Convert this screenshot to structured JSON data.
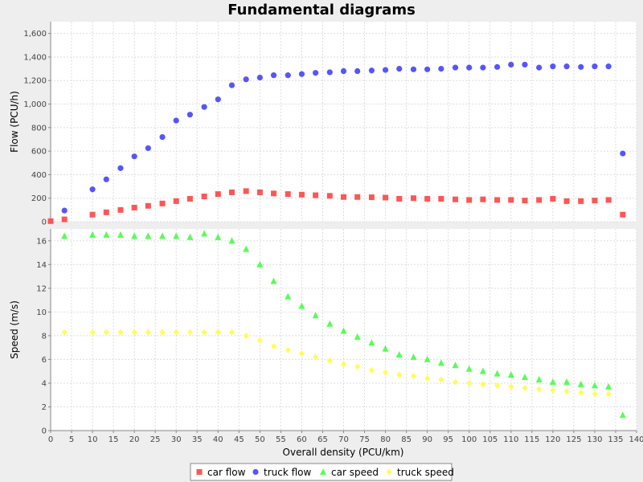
{
  "chart_data": {
    "type": "scatter",
    "title": "Fundamental diagrams",
    "xlabel": "Overall density (PCU/km)",
    "xlim": [
      0,
      140
    ],
    "xticks": [
      0,
      5,
      10,
      15,
      20,
      25,
      30,
      35,
      40,
      45,
      50,
      55,
      60,
      65,
      70,
      75,
      80,
      85,
      90,
      95,
      100,
      105,
      110,
      115,
      120,
      125,
      130,
      135,
      140
    ],
    "grid": true,
    "legend_placement": "bottom",
    "panels": [
      {
        "ylabel": "Flow (PCU/h)",
        "ylim": [
          0,
          1700
        ],
        "yticks": [
          0,
          200,
          400,
          600,
          800,
          1000,
          1200,
          1400,
          1600
        ],
        "ytick_labels": [
          "0",
          "200",
          "400",
          "600",
          "800",
          "1,000",
          "1,200",
          "1,400",
          "1,600"
        ],
        "series": [
          {
            "name": "car flow",
            "marker": "square",
            "color": "#ff5555",
            "x": [
              0,
              3.3,
              10,
              13.3,
              16.7,
              20,
              23.3,
              26.7,
              30,
              33.3,
              36.7,
              40,
              43.3,
              46.7,
              50,
              53.3,
              56.7,
              60,
              63.3,
              66.7,
              70,
              73.3,
              76.7,
              80,
              83.3,
              86.7,
              90,
              93.3,
              96.7,
              100,
              103.3,
              106.7,
              110,
              113.3,
              116.7,
              120,
              123.3,
              126.7,
              130,
              133.3,
              136.7
            ],
            "y": [
              5,
              20,
              60,
              80,
              100,
              120,
              135,
              155,
              175,
              195,
              215,
              235,
              250,
              260,
              250,
              240,
              235,
              230,
              225,
              220,
              210,
              210,
              208,
              205,
              195,
              200,
              195,
              195,
              190,
              185,
              190,
              185,
              185,
              180,
              185,
              195,
              175,
              175,
              180,
              185,
              60
            ]
          },
          {
            "name": "truck flow",
            "marker": "circle",
            "color": "#5555ff",
            "x": [
              3.3,
              10,
              13.3,
              16.7,
              20,
              23.3,
              26.7,
              30,
              33.3,
              36.7,
              40,
              43.3,
              46.7,
              50,
              53.3,
              56.7,
              60,
              63.3,
              66.7,
              70,
              73.3,
              76.7,
              80,
              83.3,
              86.7,
              90,
              93.3,
              96.7,
              100,
              103.3,
              106.7,
              110,
              113.3,
              116.7,
              120,
              123.3,
              126.7,
              130,
              133.3,
              136.7
            ],
            "y": [
              95,
              275,
              360,
              455,
              555,
              625,
              720,
              860,
              910,
              975,
              1040,
              1160,
              1210,
              1225,
              1245,
              1245,
              1255,
              1265,
              1270,
              1280,
              1280,
              1285,
              1290,
              1300,
              1295,
              1295,
              1300,
              1310,
              1310,
              1310,
              1315,
              1335,
              1335,
              1310,
              1320,
              1320,
              1315,
              1320,
              1320,
              580
            ]
          }
        ]
      },
      {
        "ylabel": "Speed (m/s)",
        "ylim": [
          0,
          17
        ],
        "yticks": [
          0,
          2,
          4,
          6,
          8,
          10,
          12,
          14,
          16
        ],
        "ytick_labels": [
          "0",
          "2",
          "4",
          "6",
          "8",
          "10",
          "12",
          "14",
          "16"
        ],
        "series": [
          {
            "name": "car speed",
            "marker": "triangle",
            "color": "#55ff55",
            "x": [
              3.3,
              10,
              13.3,
              16.7,
              20,
              23.3,
              26.7,
              30,
              33.3,
              36.7,
              40,
              43.3,
              46.7,
              50,
              53.3,
              56.7,
              60,
              63.3,
              66.7,
              70,
              73.3,
              76.7,
              80,
              83.3,
              86.7,
              90,
              93.3,
              96.7,
              100,
              103.3,
              106.7,
              110,
              113.3,
              116.7,
              120,
              123.3,
              126.7,
              130,
              133.3,
              136.7
            ],
            "y": [
              16.4,
              16.5,
              16.5,
              16.5,
              16.4,
              16.4,
              16.4,
              16.4,
              16.3,
              16.6,
              16.3,
              16.0,
              15.3,
              14.0,
              12.6,
              11.3,
              10.5,
              9.7,
              9.0,
              8.4,
              7.9,
              7.4,
              6.9,
              6.4,
              6.2,
              6.0,
              5.7,
              5.5,
              5.2,
              5.0,
              4.8,
              4.7,
              4.5,
              4.3,
              4.1,
              4.1,
              3.9,
              3.8,
              3.7,
              1.3
            ]
          },
          {
            "name": "truck speed",
            "marker": "diamond",
            "color": "#ffff55",
            "x": [
              3.3,
              10,
              13.3,
              16.7,
              20,
              23.3,
              26.7,
              30,
              33.3,
              36.7,
              40,
              43.3,
              46.7,
              50,
              53.3,
              56.7,
              60,
              63.3,
              66.7,
              70,
              73.3,
              76.7,
              80,
              83.3,
              86.7,
              90,
              93.3,
              96.7,
              100,
              103.3,
              106.7,
              110,
              113.3,
              116.7,
              120,
              123.3,
              126.7,
              130,
              133.3
            ],
            "y": [
              8.3,
              8.3,
              8.3,
              8.3,
              8.3,
              8.3,
              8.3,
              8.3,
              8.3,
              8.3,
              8.3,
              8.3,
              8.0,
              7.6,
              7.1,
              6.8,
              6.5,
              6.2,
              5.9,
              5.6,
              5.4,
              5.1,
              4.9,
              4.7,
              4.6,
              4.4,
              4.3,
              4.1,
              4.0,
              3.9,
              3.8,
              3.7,
              3.6,
              3.5,
              3.4,
              3.3,
              3.2,
              3.1,
              3.1
            ]
          }
        ]
      }
    ]
  }
}
